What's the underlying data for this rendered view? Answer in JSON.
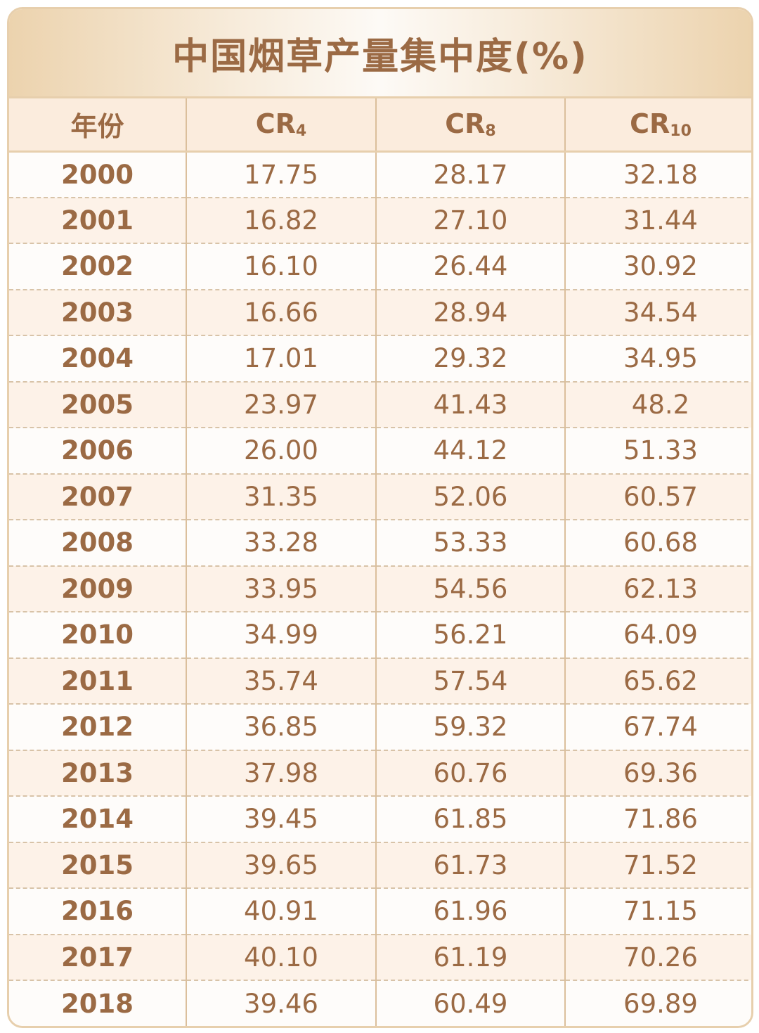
{
  "title": "中国烟草产量集中度(%)",
  "header": {
    "year": "年份",
    "cr4": {
      "main": "CR",
      "sub": "4"
    },
    "cr8": {
      "main": "CR",
      "sub": "8"
    },
    "cr10": {
      "main": "CR",
      "sub": "10"
    }
  },
  "colors": {
    "text": "#9b6a44",
    "border": "#e7cfad",
    "row_alt": "#fdf2e8",
    "header_bg": "#fbecdd"
  },
  "chart_data": {
    "type": "table",
    "title": "中国烟草产量集中度(%)",
    "columns": [
      "年份",
      "CR4",
      "CR8",
      "CR10"
    ],
    "rows": [
      [
        "2000",
        "17.75",
        "28.17",
        "32.18"
      ],
      [
        "2001",
        "16.82",
        "27.10",
        "31.44"
      ],
      [
        "2002",
        "16.10",
        "26.44",
        "30.92"
      ],
      [
        "2003",
        "16.66",
        "28.94",
        "34.54"
      ],
      [
        "2004",
        "17.01",
        "29.32",
        "34.95"
      ],
      [
        "2005",
        "23.97",
        "41.43",
        "48.2"
      ],
      [
        "2006",
        "26.00",
        "44.12",
        "51.33"
      ],
      [
        "2007",
        "31.35",
        "52.06",
        "60.57"
      ],
      [
        "2008",
        "33.28",
        "53.33",
        "60.68"
      ],
      [
        "2009",
        "33.95",
        "54.56",
        "62.13"
      ],
      [
        "2010",
        "34.99",
        "56.21",
        "64.09"
      ],
      [
        "2011",
        "35.74",
        "57.54",
        "65.62"
      ],
      [
        "2012",
        "36.85",
        "59.32",
        "67.74"
      ],
      [
        "2013",
        "37.98",
        "60.76",
        "69.36"
      ],
      [
        "2014",
        "39.45",
        "61.85",
        "71.86"
      ],
      [
        "2015",
        "39.65",
        "61.73",
        "71.52"
      ],
      [
        "2016",
        "40.91",
        "61.96",
        "71.15"
      ],
      [
        "2017",
        "40.10",
        "61.19",
        "70.26"
      ],
      [
        "2018",
        "39.46",
        "60.49",
        "69.89"
      ]
    ]
  }
}
